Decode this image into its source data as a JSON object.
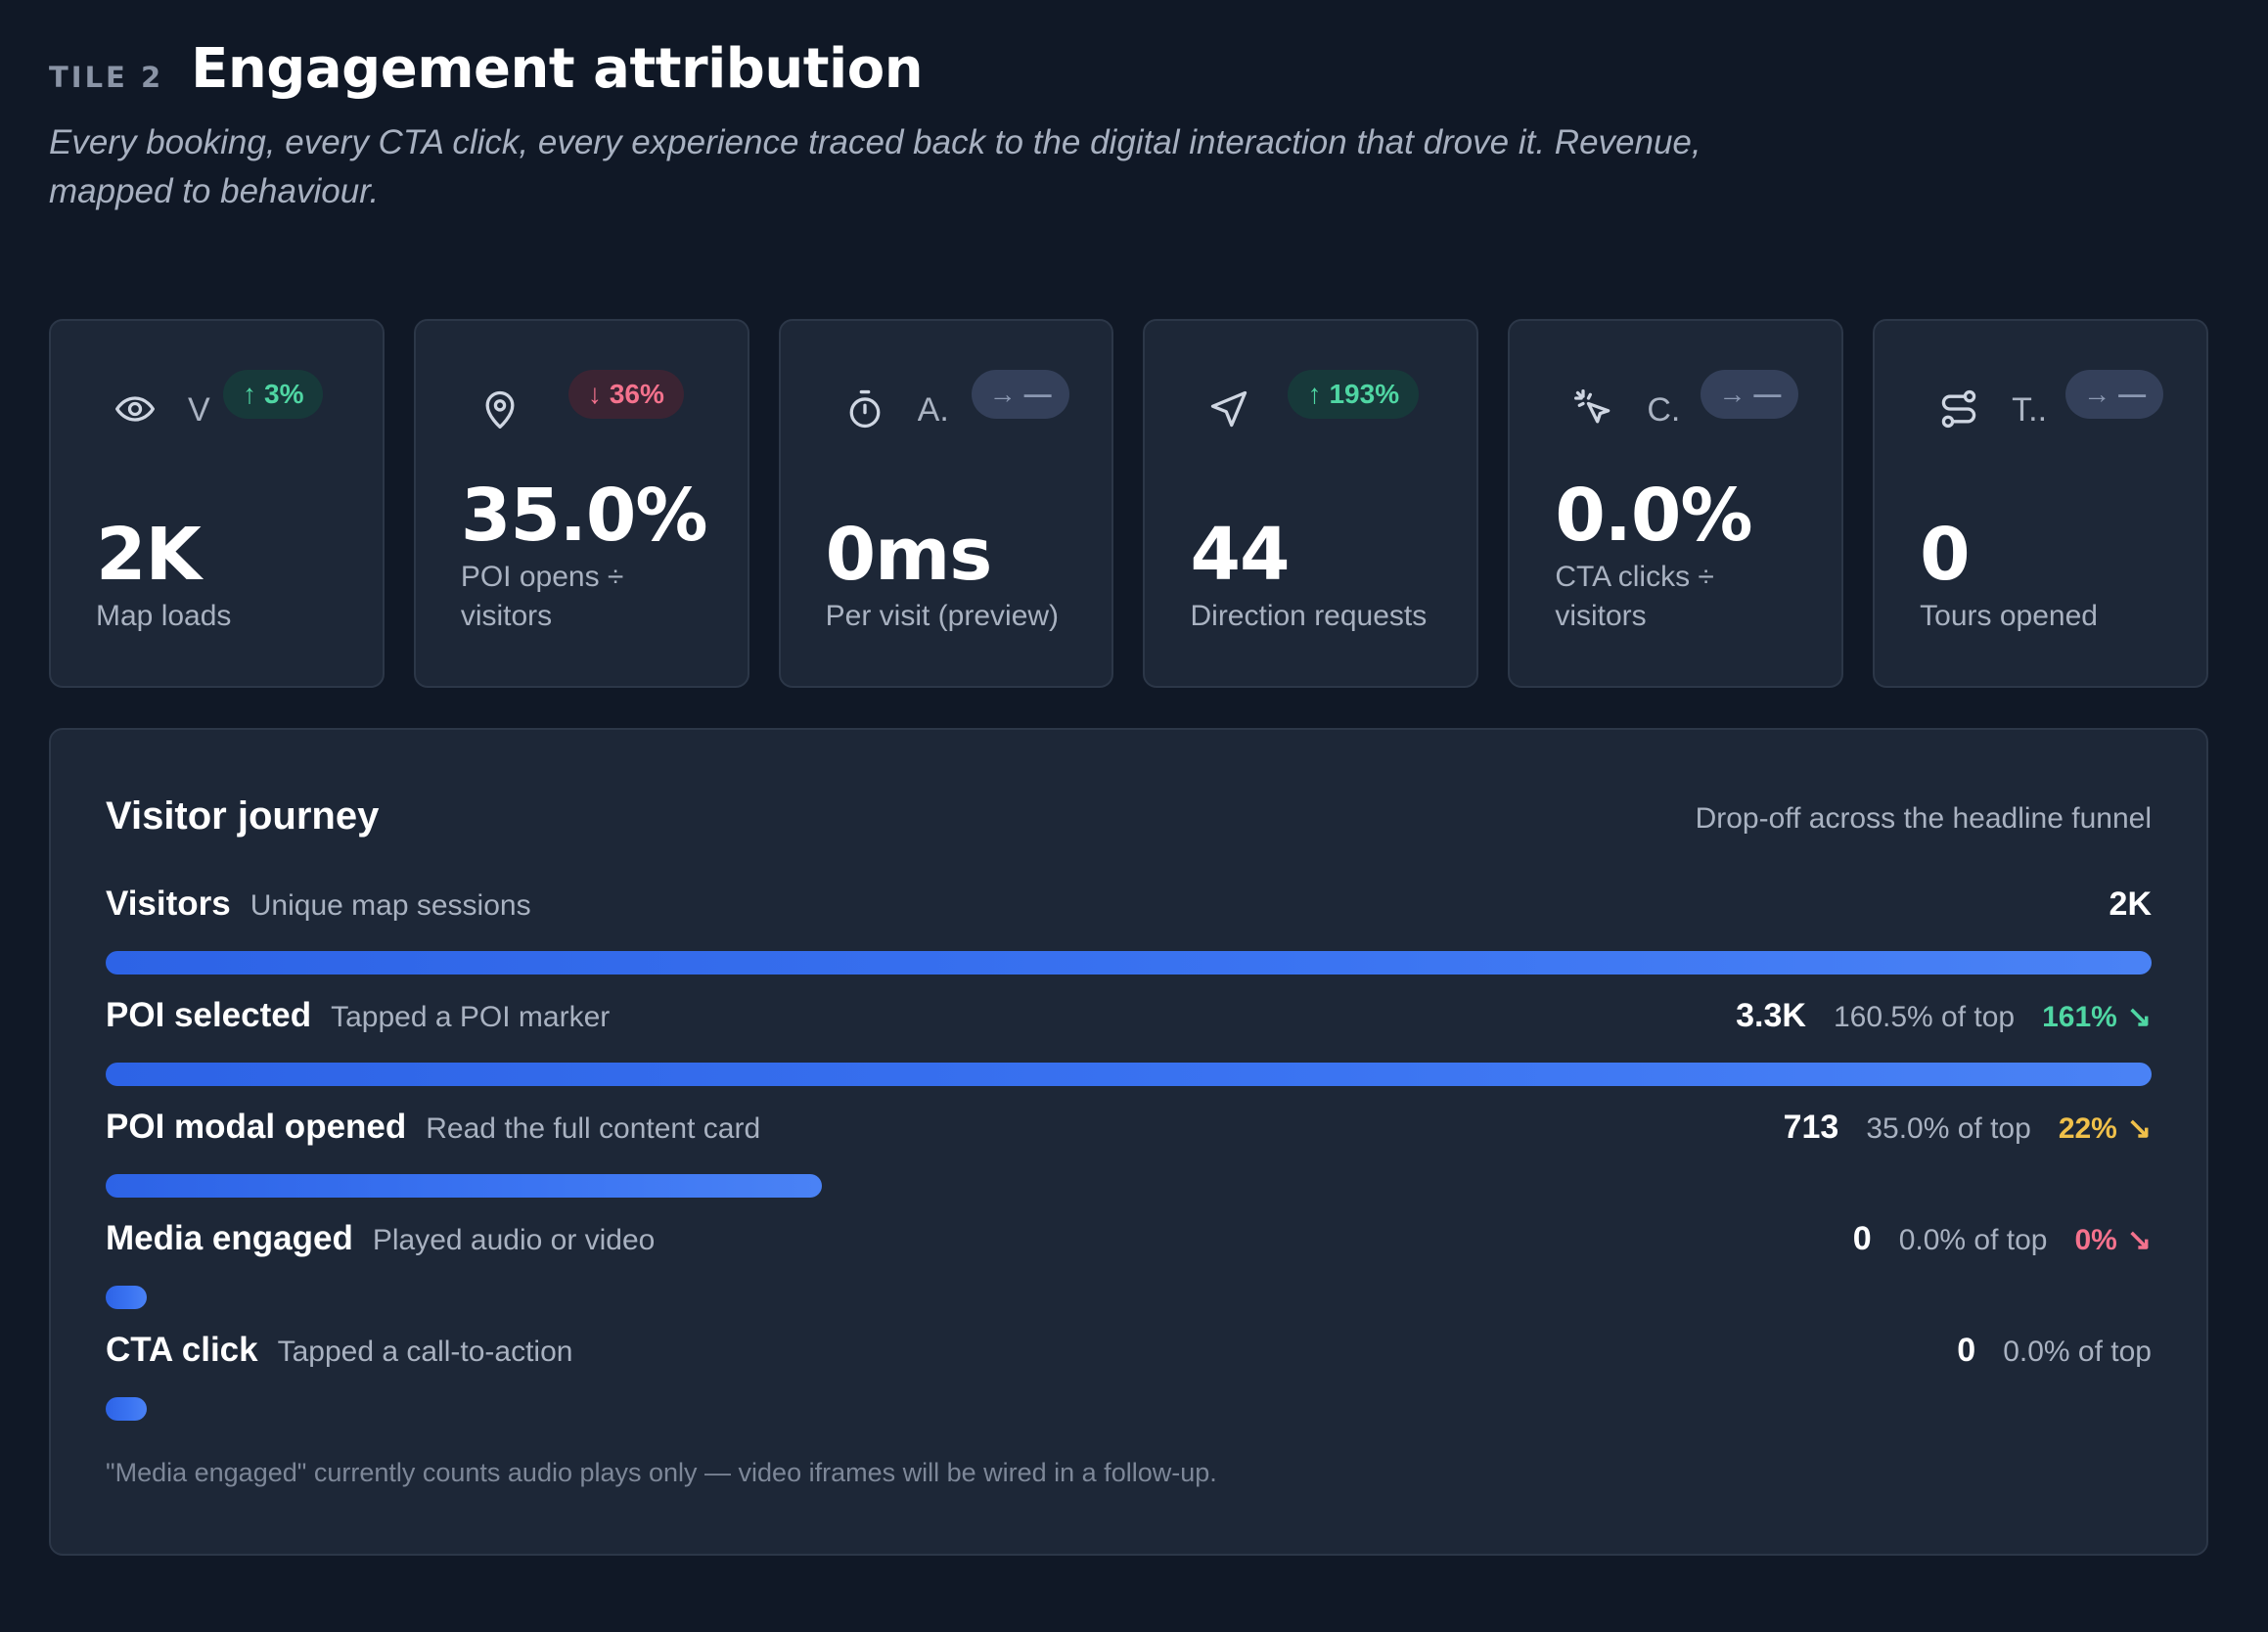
{
  "header": {
    "eyebrow": "TILE 2",
    "title": "Engagement attribution",
    "subtitle": "Every booking, every CTA click, every experience traced back to the digital interaction that drove it. Revenue, mapped to behaviour."
  },
  "tiles": [
    {
      "icon": "eye-icon",
      "label": "V",
      "delta": "3%",
      "delta_dir": "up",
      "value": "2K",
      "desc": "Map loads"
    },
    {
      "icon": "map-pin-icon",
      "label": "",
      "delta": "36%",
      "delta_dir": "down",
      "value": "35.0%",
      "desc": "POI opens ÷ visitors"
    },
    {
      "icon": "stopwatch-icon",
      "label": "A.",
      "delta": "—",
      "delta_dir": "flat",
      "value": "0ms",
      "desc": "Per visit (preview)"
    },
    {
      "icon": "navigation-arrow-icon",
      "label": "",
      "delta": "193%",
      "delta_dir": "up",
      "value": "44",
      "desc": "Direction requests"
    },
    {
      "icon": "cursor-click-icon",
      "label": "C.",
      "delta": "—",
      "delta_dir": "flat",
      "value": "0.0%",
      "desc": "CTA clicks ÷ visitors"
    },
    {
      "icon": "route-icon",
      "label": "T..",
      "delta": "—",
      "delta_dir": "flat",
      "value": "0",
      "desc": "Tours opened"
    }
  ],
  "journey": {
    "title": "Visitor journey",
    "hint": "Drop-off across the headline funnel",
    "stages": [
      {
        "name": "Visitors",
        "sub": "Unique map sessions",
        "count": "2K",
        "pct": "",
        "conv": "",
        "conv_color": "",
        "fill": 1.0
      },
      {
        "name": "POI selected",
        "sub": "Tapped a POI marker",
        "count": "3.3K",
        "pct": "160.5% of top",
        "conv": "161%",
        "conv_color": "#4fd6a3",
        "fill": 1.0
      },
      {
        "name": "POI modal opened",
        "sub": "Read the full content card",
        "count": "713",
        "pct": "35.0% of top",
        "conv": "22%",
        "conv_color": "#f0c04a",
        "fill": 0.35
      },
      {
        "name": "Media engaged",
        "sub": "Played audio or video",
        "count": "0",
        "pct": "0.0% of top",
        "conv": "0%",
        "conv_color": "#f4728d",
        "fill": 0.0
      },
      {
        "name": "CTA click",
        "sub": "Tapped a call-to-action",
        "count": "0",
        "pct": "0.0% of top",
        "conv": "",
        "conv_color": "",
        "fill": 0.0
      }
    ],
    "footnote": "\"Media engaged\" currently counts audio plays only — video iframes will be wired in a follow-up."
  },
  "colors": {
    "background": "#101826",
    "card": "#1d2737",
    "accent": "#3b74f2",
    "up": "#4fd6a3",
    "down": "#f4728d",
    "warn": "#f0c04a"
  }
}
